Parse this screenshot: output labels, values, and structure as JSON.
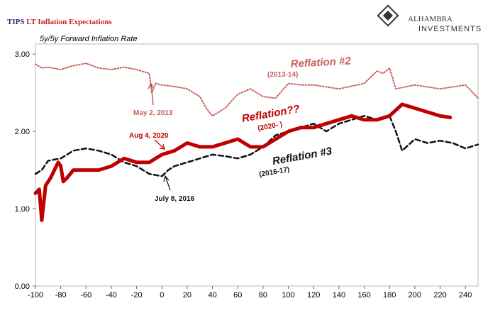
{
  "chart_data": {
    "type": "line",
    "title": [
      "TIPS",
      "LT Inflation Expectations"
    ],
    "title_colors": [
      "#1f2a7a",
      "#d01c1c"
    ],
    "subtitle": "5y/5y Forward Inflation Rate",
    "logo": {
      "name": "ALHAMBRA",
      "tagline": "INVESTMENTS"
    },
    "xlim": [
      -100,
      250
    ],
    "xticks": [
      -100,
      -80,
      -60,
      -40,
      -20,
      0,
      20,
      40,
      60,
      80,
      100,
      120,
      140,
      160,
      180,
      200,
      220,
      240
    ],
    "ylim": [
      0,
      3.13
    ],
    "yticks": [
      {
        "value": 0,
        "label": "0.00"
      },
      {
        "value": 1,
        "label": "1.00"
      },
      {
        "value": 2,
        "label": "2.00"
      },
      {
        "value": 3,
        "label": "3.00"
      }
    ],
    "series": [
      {
        "name": "Reflation #2",
        "color": "#c9605c",
        "style": "dotted",
        "x": [
          -100,
          -95,
          -90,
          -80,
          -70,
          -60,
          -50,
          -40,
          -30,
          -20,
          -10,
          -8,
          -5,
          0,
          10,
          20,
          30,
          35,
          40,
          50,
          60,
          70,
          80,
          90,
          100,
          110,
          120,
          140,
          160,
          170,
          175,
          180,
          185,
          200,
          220,
          240,
          250
        ],
        "values": [
          2.87,
          2.82,
          2.83,
          2.8,
          2.85,
          2.88,
          2.82,
          2.8,
          2.83,
          2.8,
          2.75,
          2.5,
          2.62,
          2.6,
          2.58,
          2.55,
          2.45,
          2.3,
          2.2,
          2.3,
          2.48,
          2.55,
          2.45,
          2.43,
          2.62,
          2.6,
          2.6,
          2.55,
          2.62,
          2.78,
          2.75,
          2.82,
          2.55,
          2.6,
          2.55,
          2.6,
          2.43
        ]
      },
      {
        "name": "Reflation #3",
        "color": "#111111",
        "style": "dashed",
        "x": [
          -100,
          -95,
          -90,
          -80,
          -70,
          -60,
          -50,
          -40,
          -30,
          -20,
          -10,
          0,
          5,
          10,
          20,
          30,
          40,
          50,
          60,
          70,
          80,
          90,
          100,
          110,
          120,
          130,
          140,
          150,
          160,
          170,
          180,
          185,
          190,
          200,
          210,
          220,
          230,
          240,
          250
        ],
        "values": [
          1.45,
          1.5,
          1.62,
          1.65,
          1.75,
          1.78,
          1.75,
          1.7,
          1.6,
          1.55,
          1.45,
          1.42,
          1.5,
          1.55,
          1.6,
          1.65,
          1.7,
          1.68,
          1.65,
          1.7,
          1.8,
          1.95,
          2.0,
          2.05,
          2.1,
          2.0,
          2.1,
          2.15,
          2.2,
          2.15,
          2.2,
          2.0,
          1.75,
          1.9,
          1.85,
          1.88,
          1.85,
          1.78,
          1.83
        ]
      },
      {
        "name": "Reflation??",
        "color": "#c00000",
        "style": "solid",
        "x": [
          -100,
          -97,
          -95,
          -92,
          -88,
          -85,
          -82,
          -80,
          -78,
          -75,
          -70,
          -60,
          -50,
          -40,
          -30,
          -20,
          -10,
          0,
          10,
          20,
          30,
          40,
          50,
          60,
          70,
          80,
          90,
          100,
          110,
          120,
          130,
          140,
          150,
          160,
          170,
          180,
          190,
          200,
          210,
          220,
          228
        ],
        "values": [
          1.2,
          1.25,
          0.85,
          1.3,
          1.4,
          1.5,
          1.6,
          1.55,
          1.35,
          1.4,
          1.5,
          1.5,
          1.5,
          1.55,
          1.65,
          1.6,
          1.6,
          1.7,
          1.75,
          1.85,
          1.8,
          1.8,
          1.85,
          1.9,
          1.8,
          1.8,
          1.9,
          2.0,
          2.05,
          2.05,
          2.1,
          2.15,
          2.2,
          2.15,
          2.15,
          2.2,
          2.35,
          2.3,
          2.25,
          2.2,
          2.18
        ]
      }
    ],
    "annotations": [
      "(2013-14)",
      "May 2, 2013",
      "(2020- )",
      "Aug 4, 2020",
      "(2016-17)",
      "July 8, 2016"
    ]
  }
}
